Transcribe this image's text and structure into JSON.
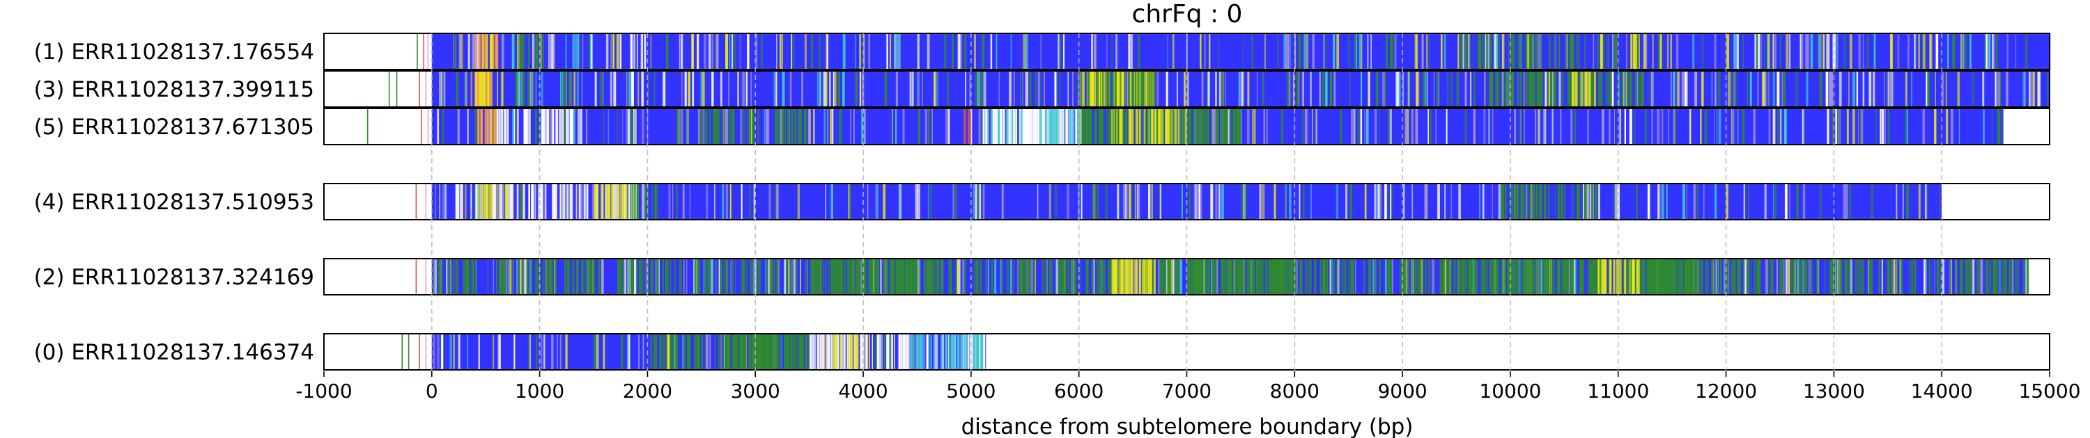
{
  "chart_data": {
    "type": "heatmap",
    "title": "chrFq : 0",
    "xlabel": "distance from subtelomere boundary (bp)",
    "ylabel": "",
    "xlim": [
      -1000,
      15000
    ],
    "xticks": [
      -1000,
      0,
      1000,
      2000,
      3000,
      4000,
      5000,
      6000,
      7000,
      8000,
      9000,
      10000,
      11000,
      12000,
      13000,
      14000,
      15000
    ],
    "xtick_labels": [
      "-1000",
      "0",
      "1000",
      "2000",
      "3000",
      "4000",
      "5000",
      "6000",
      "7000",
      "8000",
      "9000",
      "10000",
      "11000",
      "12000",
      "13000",
      "14000",
      "15000"
    ],
    "grid": "vertical dashed at x ticks",
    "legend": "none",
    "colors": {
      "base": "#3333ff",
      "green": "#2e8b2e",
      "yellow": "#e6e61a",
      "orange": "#ffa040",
      "cyan": "#40c8d8",
      "lavender": "#a090e0",
      "white": "#ffffff",
      "red": "#e05050",
      "pink": "#f0a0c0"
    },
    "tracks": [
      {
        "label": "(1) ERR11028137.176554",
        "read_start": 0,
        "read_end": 15000,
        "prefix_ticks": [
          {
            "x": -140,
            "c": "green"
          },
          {
            "x": -80,
            "c": "red"
          },
          {
            "x": -40,
            "c": "pink"
          }
        ],
        "segments": [
          {
            "start": 400,
            "end": 600,
            "c": "orange",
            "w": 0.5
          },
          {
            "start": 450,
            "end": 560,
            "c": "yellow",
            "w": 0.4
          },
          {
            "start": 800,
            "end": 1000,
            "c": "green",
            "w": 0.3
          },
          {
            "start": 1200,
            "end": 1400,
            "c": "cyan",
            "w": 0.25
          },
          {
            "start": 1800,
            "end": 2000,
            "c": "white",
            "w": 0.2
          },
          {
            "start": 3500,
            "end": 3600,
            "c": "green",
            "w": 0.2
          },
          {
            "start": 9500,
            "end": 9900,
            "c": "green",
            "w": 0.25
          },
          {
            "start": 9900,
            "end": 11000,
            "c": "green",
            "w": 0.2
          },
          {
            "start": 11000,
            "end": 11500,
            "c": "yellow",
            "w": 0.15
          }
        ],
        "density": 0.12
      },
      {
        "label": "(3) ERR11028137.399115",
        "read_start": 0,
        "read_end": 15000,
        "prefix_ticks": [
          {
            "x": -400,
            "c": "green"
          },
          {
            "x": -330,
            "c": "green"
          },
          {
            "x": -120,
            "c": "red"
          },
          {
            "x": -60,
            "c": "pink"
          }
        ],
        "segments": [
          {
            "start": 350,
            "end": 550,
            "c": "orange",
            "w": 0.45
          },
          {
            "start": 380,
            "end": 650,
            "c": "yellow",
            "w": 0.35
          },
          {
            "start": 6000,
            "end": 6700,
            "c": "yellow",
            "w": 0.8
          },
          {
            "start": 6000,
            "end": 6700,
            "c": "green",
            "w": 0.4
          },
          {
            "start": 9800,
            "end": 11300,
            "c": "green",
            "w": 0.35
          },
          {
            "start": 10500,
            "end": 10800,
            "c": "yellow",
            "w": 0.3
          }
        ],
        "density": 0.14
      },
      {
        "label": "(5) ERR11028137.671305",
        "read_start": 0,
        "read_end": 14580,
        "prefix_ticks": [
          {
            "x": -600,
            "c": "green"
          },
          {
            "x": -100,
            "c": "red"
          },
          {
            "x": -40,
            "c": "pink"
          }
        ],
        "segments": [
          {
            "start": 400,
            "end": 600,
            "c": "orange",
            "w": 0.6
          },
          {
            "start": 600,
            "end": 1500,
            "c": "white",
            "w": 0.3
          },
          {
            "start": 2500,
            "end": 3500,
            "c": "green",
            "w": 0.25
          },
          {
            "start": 4900,
            "end": 5000,
            "c": "red",
            "w": 0.5
          },
          {
            "start": 5100,
            "end": 6000,
            "c": "white",
            "w": 0.75
          },
          {
            "start": 5100,
            "end": 6000,
            "c": "cyan",
            "w": 0.2
          },
          {
            "start": 6000,
            "end": 7500,
            "c": "green",
            "w": 0.55
          },
          {
            "start": 6300,
            "end": 7000,
            "c": "yellow",
            "w": 0.35
          }
        ],
        "density": 0.12
      },
      {
        "label": "(4) ERR11028137.510953",
        "read_start": 0,
        "read_end": 14000,
        "prefix_ticks": [
          {
            "x": -150,
            "c": "red"
          },
          {
            "x": -60,
            "c": "pink"
          }
        ],
        "segments": [
          {
            "start": 200,
            "end": 2000,
            "c": "white",
            "w": 0.3
          },
          {
            "start": 400,
            "end": 700,
            "c": "yellow",
            "w": 0.35
          },
          {
            "start": 1500,
            "end": 2000,
            "c": "yellow",
            "w": 0.3
          },
          {
            "start": 1800,
            "end": 2100,
            "c": "green",
            "w": 0.3
          },
          {
            "start": 9800,
            "end": 10800,
            "c": "green",
            "w": 0.3
          }
        ],
        "density": 0.1
      },
      {
        "label": "(2) ERR11028137.324169",
        "read_start": 0,
        "read_end": 14800,
        "prefix_ticks": [
          {
            "x": -150,
            "c": "red"
          },
          {
            "x": -60,
            "c": "pink"
          }
        ],
        "segments": [
          {
            "start": 0,
            "end": 14800,
            "c": "green",
            "w": 0.25
          },
          {
            "start": 3500,
            "end": 4500,
            "c": "green",
            "w": 0.5
          },
          {
            "start": 6300,
            "end": 6700,
            "c": "yellow",
            "w": 0.6
          },
          {
            "start": 7000,
            "end": 8000,
            "c": "green",
            "w": 0.55
          },
          {
            "start": 9500,
            "end": 11500,
            "c": "green",
            "w": 0.4
          },
          {
            "start": 10800,
            "end": 11200,
            "c": "yellow",
            "w": 0.45
          },
          {
            "start": 11300,
            "end": 11700,
            "c": "green",
            "w": 0.6
          }
        ],
        "density": 0.15
      },
      {
        "label": "(0) ERR11028137.146374",
        "read_start": 0,
        "read_end": 5150,
        "prefix_ticks": [
          {
            "x": -280,
            "c": "green"
          },
          {
            "x": -220,
            "c": "green"
          },
          {
            "x": -120,
            "c": "red"
          },
          {
            "x": -60,
            "c": "pink"
          }
        ],
        "segments": [
          {
            "start": 2000,
            "end": 2500,
            "c": "green",
            "w": 0.4
          },
          {
            "start": 2650,
            "end": 3500,
            "c": "green",
            "w": 0.75
          },
          {
            "start": 3500,
            "end": 5150,
            "c": "white",
            "w": 0.35
          },
          {
            "start": 3700,
            "end": 4100,
            "c": "yellow",
            "w": 0.25
          },
          {
            "start": 4400,
            "end": 5100,
            "c": "cyan",
            "w": 0.35
          }
        ],
        "density": 0.12
      }
    ]
  }
}
